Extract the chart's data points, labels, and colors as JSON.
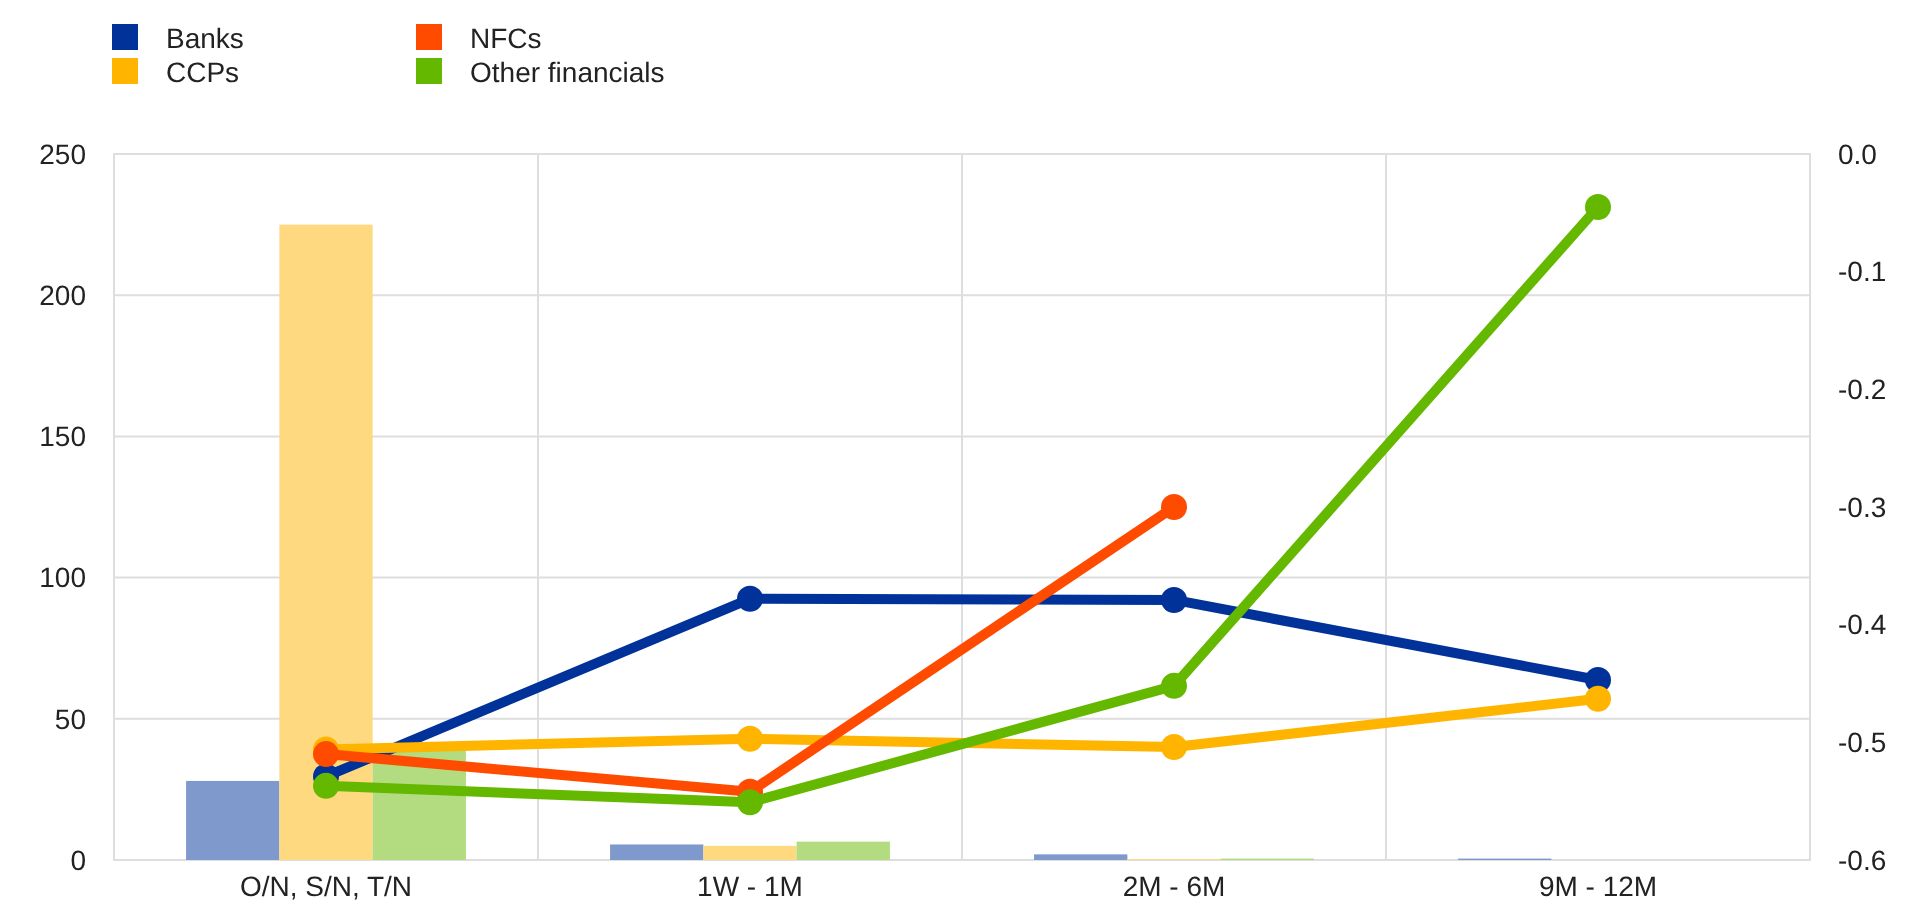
{
  "chart_data": {
    "type": "bar",
    "categories": [
      "O/N, S/N, T/N",
      "1W - 1M",
      "2M - 6M",
      "9M - 12M"
    ],
    "series": [
      {
        "color": "#8099cc",
        "values": [
          28,
          5.5,
          2,
          0.5
        ]
      },
      {
        "color": "#ffd980",
        "values": [
          225,
          5,
          0.3,
          null
        ]
      },
      {
        "color": "#b2dc7f",
        "values": [
          40,
          6.5,
          0.5,
          null
        ]
      },
      {
        "type": "line",
        "name": "Banks",
        "color": "#003299",
        "axis": "y2",
        "values": [
          -0.529,
          -0.378,
          -0.379,
          -0.447
        ]
      },
      {
        "type": "line",
        "name": "CCPs",
        "color": "#ffb400",
        "axis": "y2",
        "values": [
          -0.506,
          -0.497,
          -0.504,
          -0.463
        ]
      },
      {
        "type": "line",
        "name": "NFCs",
        "color": "#ff4b00",
        "axis": "y2",
        "values": [
          -0.51,
          -0.542,
          -0.3,
          null
        ]
      },
      {
        "type": "line",
        "name": "Other financials",
        "color": "#65b800",
        "axis": "y2",
        "values": [
          -0.537,
          -0.551,
          -0.452,
          -0.045
        ]
      }
    ],
    "ylim": [
      0,
      250
    ],
    "yticks": [
      0,
      50,
      100,
      150,
      200,
      250
    ],
    "y2lim": [
      -0.6,
      0
    ],
    "y2ticks": [
      {
        "value": -0.6,
        "label": "-0.6"
      },
      -0.5,
      -0.4,
      -0.3,
      -0.2,
      -0.1,
      {
        "value": 0,
        "label": "0.0"
      }
    ],
    "grid": true,
    "legend": "top left",
    "marker": "circle",
    "line_style": "solid"
  }
}
